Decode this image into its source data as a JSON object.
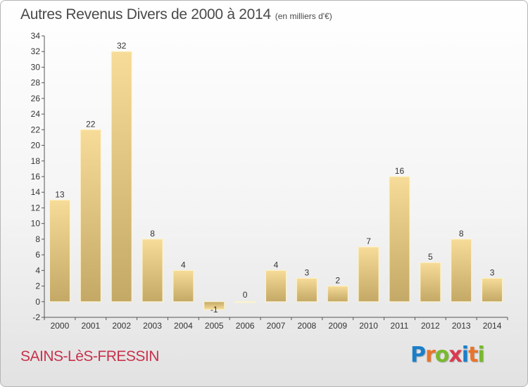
{
  "title": "Autres Revenus Divers de 2000 à 2014",
  "subtitle": "(en milliers d'€)",
  "town": "SAINS-LèS-FRESSIN",
  "logo": {
    "letters": [
      "P",
      "r",
      "o",
      "x",
      "i",
      "t",
      "i"
    ],
    "colors": [
      "#1a7fc9",
      "#e8742a",
      "#79b92e",
      "#d93a52",
      "#1a7fc9",
      "#e8742a",
      "#79b92e"
    ]
  },
  "chart_data": {
    "type": "bar",
    "title": "Autres Revenus Divers de 2000 à 2014",
    "subtitle": "(en milliers d'€)",
    "categories": [
      "2000",
      "2001",
      "2002",
      "2003",
      "2004",
      "2005",
      "2006",
      "2007",
      "2008",
      "2009",
      "2010",
      "2011",
      "2012",
      "2013",
      "2014"
    ],
    "values": [
      13,
      22,
      32,
      8,
      4,
      -1,
      0,
      4,
      3,
      2,
      7,
      16,
      5,
      8,
      3
    ],
    "data_labels": [
      "13",
      "22",
      "32",
      "8",
      "4",
      "-1",
      "0",
      "4",
      "3",
      "2",
      "7",
      "16",
      "5",
      "8",
      "3"
    ],
    "ylim": [
      -2,
      34
    ],
    "yticks": [
      -2,
      0,
      2,
      4,
      6,
      8,
      10,
      12,
      14,
      16,
      18,
      20,
      22,
      24,
      26,
      28,
      30,
      32,
      34
    ],
    "grid": false,
    "legend": "none",
    "bar_color": "#e8c878"
  }
}
